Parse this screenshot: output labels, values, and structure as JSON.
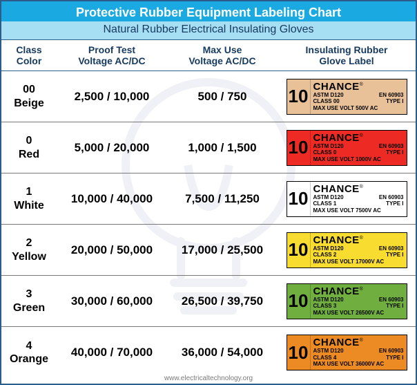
{
  "title": "Protective Rubber Equipment Labeling Chart",
  "subtitle": "Natural Rubber Electrical Insulating Gloves",
  "footer": "www.electricaltechnology.org",
  "columns": {
    "class": "Class\nColor",
    "proof": "Proof Test\nVoltage AC/DC",
    "max": "Max Use\nVoltage AC/DC",
    "label": "Insulating Rubber\nGlove Label"
  },
  "label_common": {
    "num": "10",
    "brand": "CHANCE",
    "brand_sup": "®",
    "astm": "ASTM D120",
    "en": "EN 60903",
    "type": "TYPE I"
  },
  "rows": [
    {
      "class_num": "00",
      "class_color": "Beige",
      "proof": "2,500 / 10,000",
      "max": "500 / 750",
      "label_class": "CLASS 00",
      "label_volt": "MAX USE VOLT 500V AC",
      "bg": "#e8c199",
      "fg": "#000000"
    },
    {
      "class_num": "0",
      "class_color": "Red",
      "proof": "5,000 / 20,000",
      "max": "1,000 / 1,500",
      "label_class": "CLASS 0",
      "label_volt": "MAX USE VOLT 1000V AC",
      "bg": "#ed2b24",
      "fg": "#000000"
    },
    {
      "class_num": "1",
      "class_color": "White",
      "proof": "10,000 / 40,000",
      "max": "7,500 / 11,250",
      "label_class": "CLASS 1",
      "label_volt": "MAX USE VOLT 7500V AC",
      "bg": "#ffffff",
      "fg": "#000000"
    },
    {
      "class_num": "2",
      "class_color": "Yellow",
      "proof": "20,000 / 50,000",
      "max": "17,000 / 25,500",
      "label_class": "CLASS 2",
      "label_volt": "MAX USE VOLT 17000V AC",
      "bg": "#f9dc30",
      "fg": "#000000"
    },
    {
      "class_num": "3",
      "class_color": "Green",
      "proof": "30,000 / 60,000",
      "max": "26,500 / 39,750",
      "label_class": "CLASS 3",
      "label_volt": "MAX USE VOLT 26500V AC",
      "bg": "#6fae3f",
      "fg": "#000000"
    },
    {
      "class_num": "4",
      "class_color": "Orange",
      "proof": "40,000 / 70,000",
      "max": "36,000 / 54,000",
      "label_class": "CLASS 4",
      "label_volt": "MAX USE VOLT 36000V AC",
      "bg": "#ec8b23",
      "fg": "#000000"
    }
  ],
  "colors": {
    "border": "#2b5c8a",
    "title_bg": "#1ba9e1",
    "subtitle_bg": "#a6dff4",
    "header_text": "#163a5f",
    "watermark": "#9aa6c4"
  }
}
